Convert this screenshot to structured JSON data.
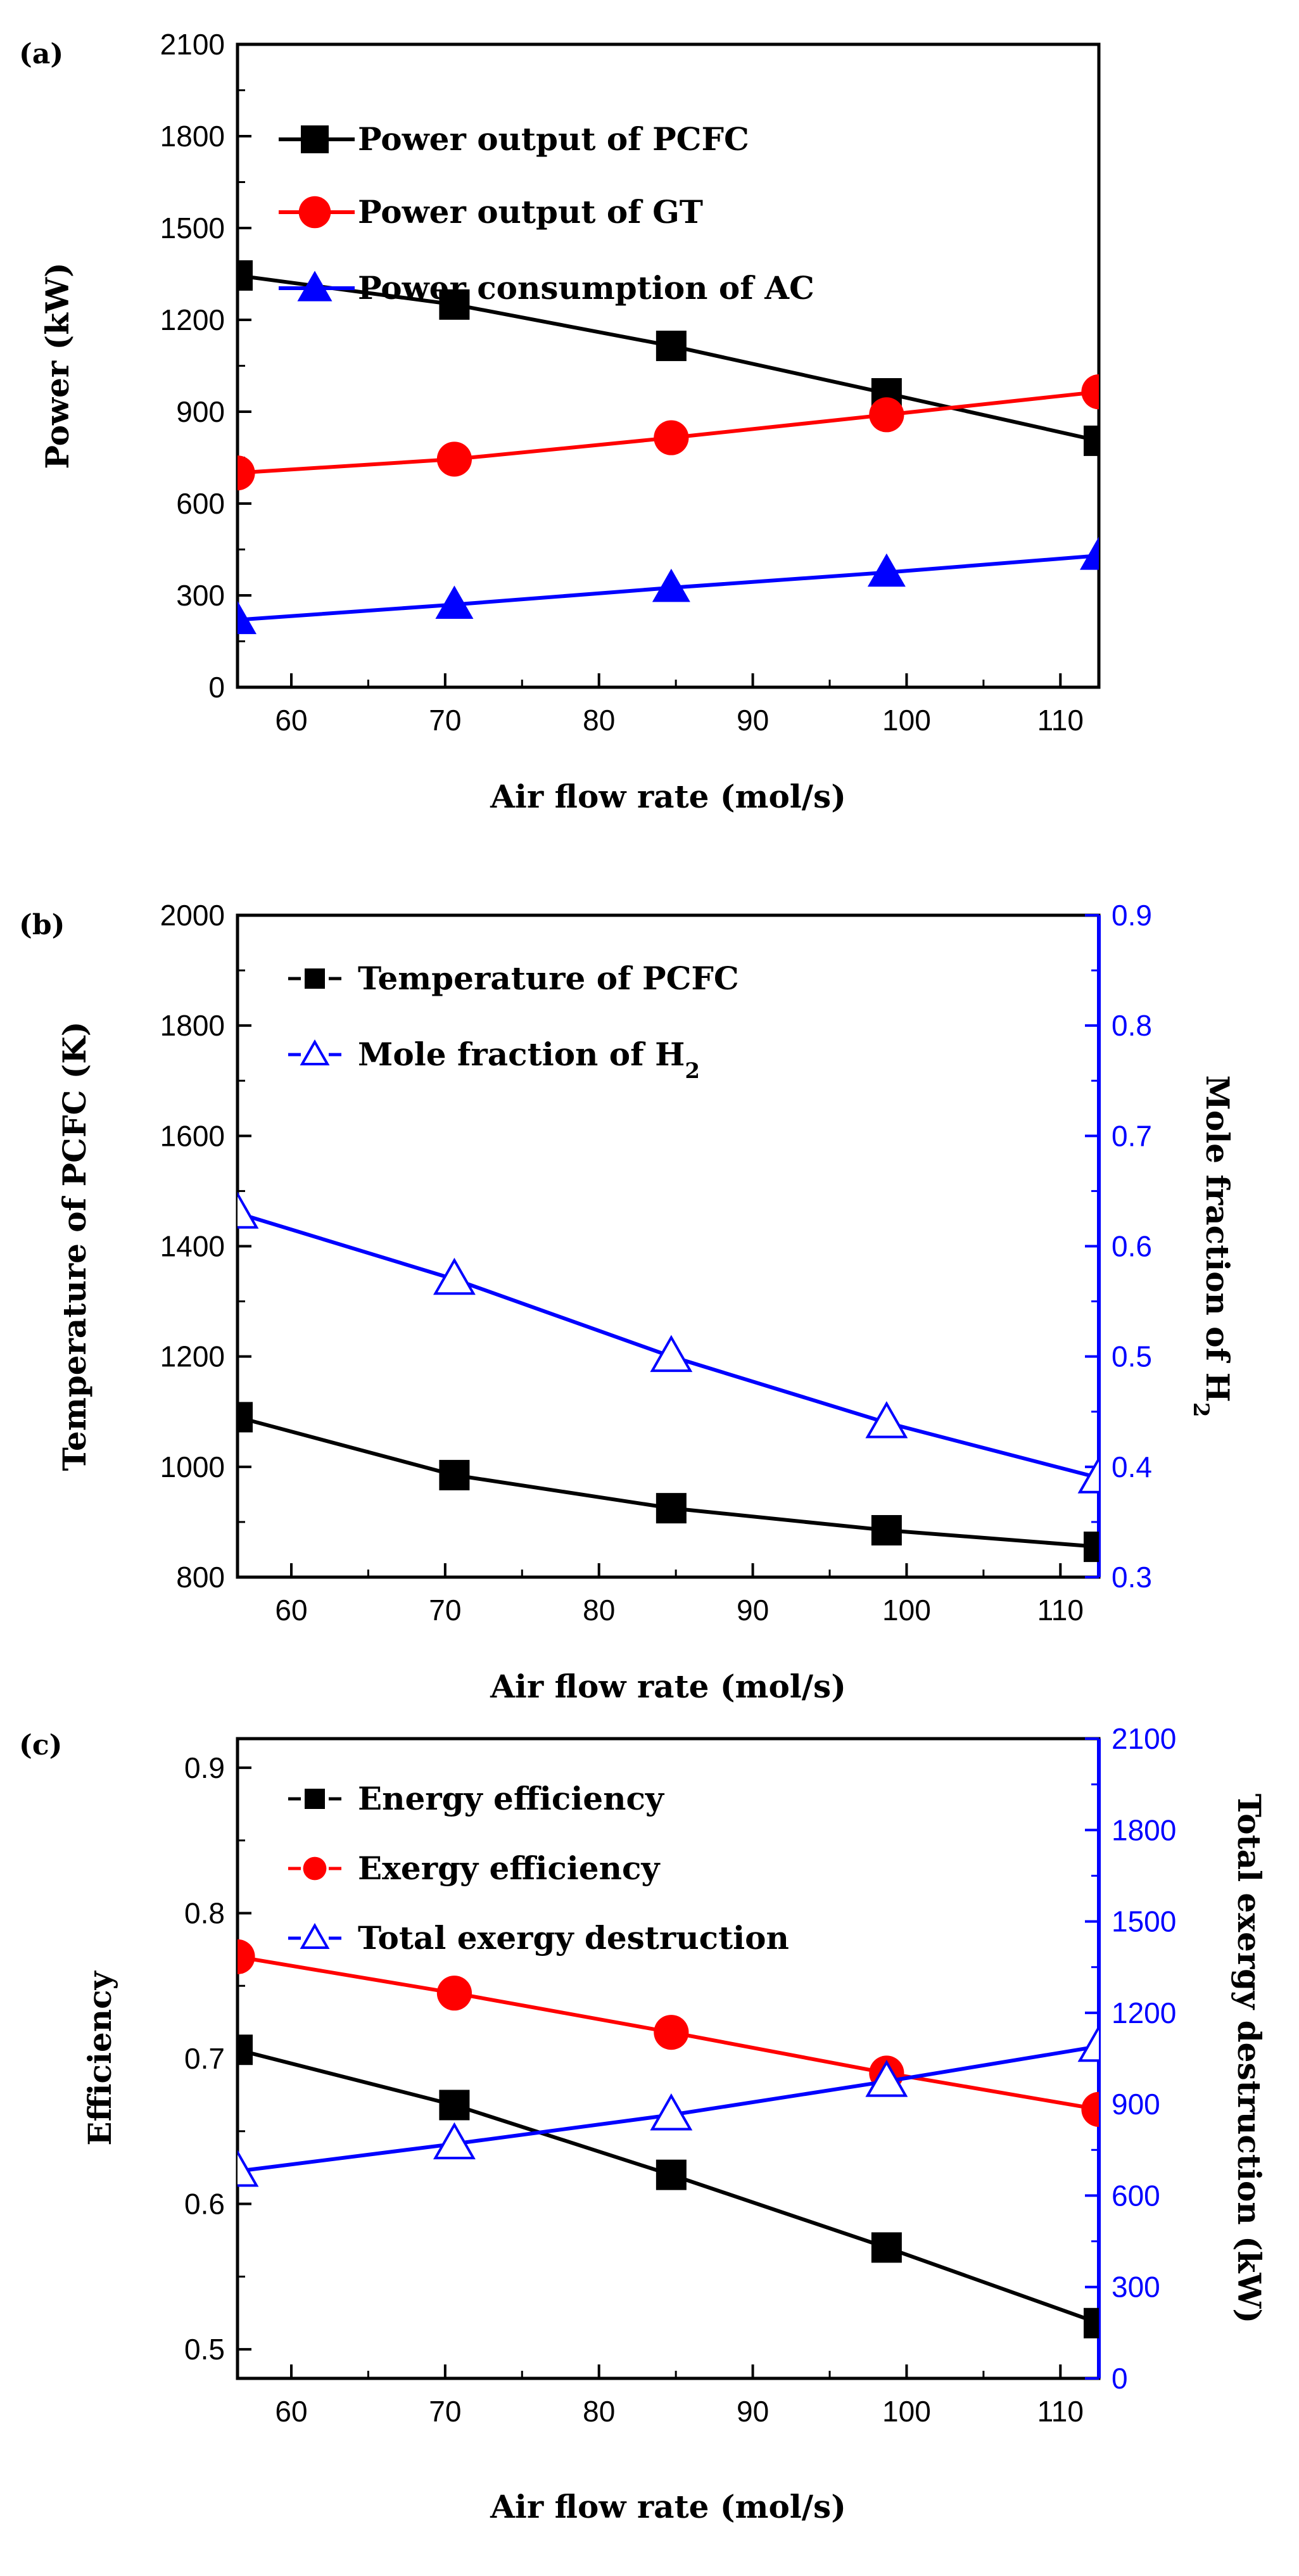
{
  "chart_data": [
    {
      "panel_label": "(a)",
      "type": "line",
      "xlabel": "Air flow rate (mol/s)",
      "ylabel": "Power (kW)",
      "xlim": [
        56.5,
        112.5
      ],
      "ylim": [
        0,
        2100
      ],
      "xticks": [
        60,
        70,
        80,
        90,
        100,
        110
      ],
      "yticks": [
        0,
        300,
        600,
        900,
        1200,
        1500,
        1800,
        2100
      ],
      "grid": false,
      "legend_position": "top-left",
      "x": [
        56.5,
        70.6,
        84.7,
        98.7,
        112.5
      ],
      "series": [
        {
          "name": "Power output of PCFC",
          "values": [
            1345,
            1250,
            1115,
            960,
            805
          ],
          "color": "#000000",
          "marker": "square-filled"
        },
        {
          "name": "Power output of GT",
          "values": [
            700,
            745,
            815,
            890,
            965
          ],
          "color": "#ff0000",
          "marker": "circle-filled"
        },
        {
          "name": "Power consumption of AC",
          "values": [
            220,
            270,
            325,
            375,
            430
          ],
          "color": "#0000ff",
          "marker": "triangle-filled"
        }
      ]
    },
    {
      "panel_label": "(b)",
      "type": "line",
      "xlabel": "Air flow rate (mol/s)",
      "ylabel": "Temperature of PCFC (K)",
      "ylabel_right": "Mole fraction of H2",
      "xlim": [
        56.5,
        112.5
      ],
      "ylim": [
        800,
        2000
      ],
      "ylim_right": [
        0.3,
        0.9
      ],
      "xticks": [
        60,
        70,
        80,
        90,
        100,
        110
      ],
      "yticks": [
        800,
        1000,
        1200,
        1400,
        1600,
        1800,
        2000
      ],
      "yticks_right": [
        0.3,
        0.4,
        0.5,
        0.6,
        0.7,
        0.8,
        0.9
      ],
      "grid": false,
      "legend_position": "top-left",
      "x": [
        56.5,
        70.6,
        84.7,
        98.7,
        112.5
      ],
      "series": [
        {
          "name": "Temperature of PCFC",
          "axis": "left",
          "values": [
            1090,
            985,
            925,
            885,
            855
          ],
          "color": "#000000",
          "marker": "square-filled"
        },
        {
          "name": "Mole fraction of H2",
          "axis": "right",
          "values": [
            0.63,
            0.57,
            0.5,
            0.44,
            0.39
          ],
          "color": "#0000ff",
          "marker": "triangle-open"
        }
      ]
    },
    {
      "panel_label": "(c)",
      "type": "line",
      "xlabel": "Air flow rate (mol/s)",
      "ylabel": "Efficiency",
      "ylabel_right": "Total exergy destruction (kW)",
      "xlim": [
        56.5,
        112.5
      ],
      "ylim": [
        0.48,
        0.92
      ],
      "ylim_right": [
        0,
        2100
      ],
      "xticks": [
        60,
        70,
        80,
        90,
        100,
        110
      ],
      "yticks": [
        0.5,
        0.6,
        0.7,
        0.8,
        0.9
      ],
      "yticks_right": [
        0,
        300,
        600,
        900,
        1200,
        1500,
        1800,
        2100
      ],
      "grid": false,
      "legend_position": "top-left",
      "x": [
        56.5,
        70.6,
        84.7,
        98.7,
        112.5
      ],
      "series": [
        {
          "name": "Energy efficiency",
          "axis": "left",
          "values": [
            0.706,
            0.668,
            0.62,
            0.57,
            0.518
          ],
          "color": "#000000",
          "marker": "square-filled"
        },
        {
          "name": "Exergy efficiency",
          "axis": "left",
          "values": [
            0.77,
            0.745,
            0.718,
            0.69,
            0.665
          ],
          "color": "#ff0000",
          "marker": "circle-filled"
        },
        {
          "name": "Total exergy destruction",
          "axis": "right",
          "values": [
            680,
            770,
            865,
            975,
            1090
          ],
          "color": "#0000ff",
          "marker": "triangle-open"
        }
      ]
    }
  ]
}
